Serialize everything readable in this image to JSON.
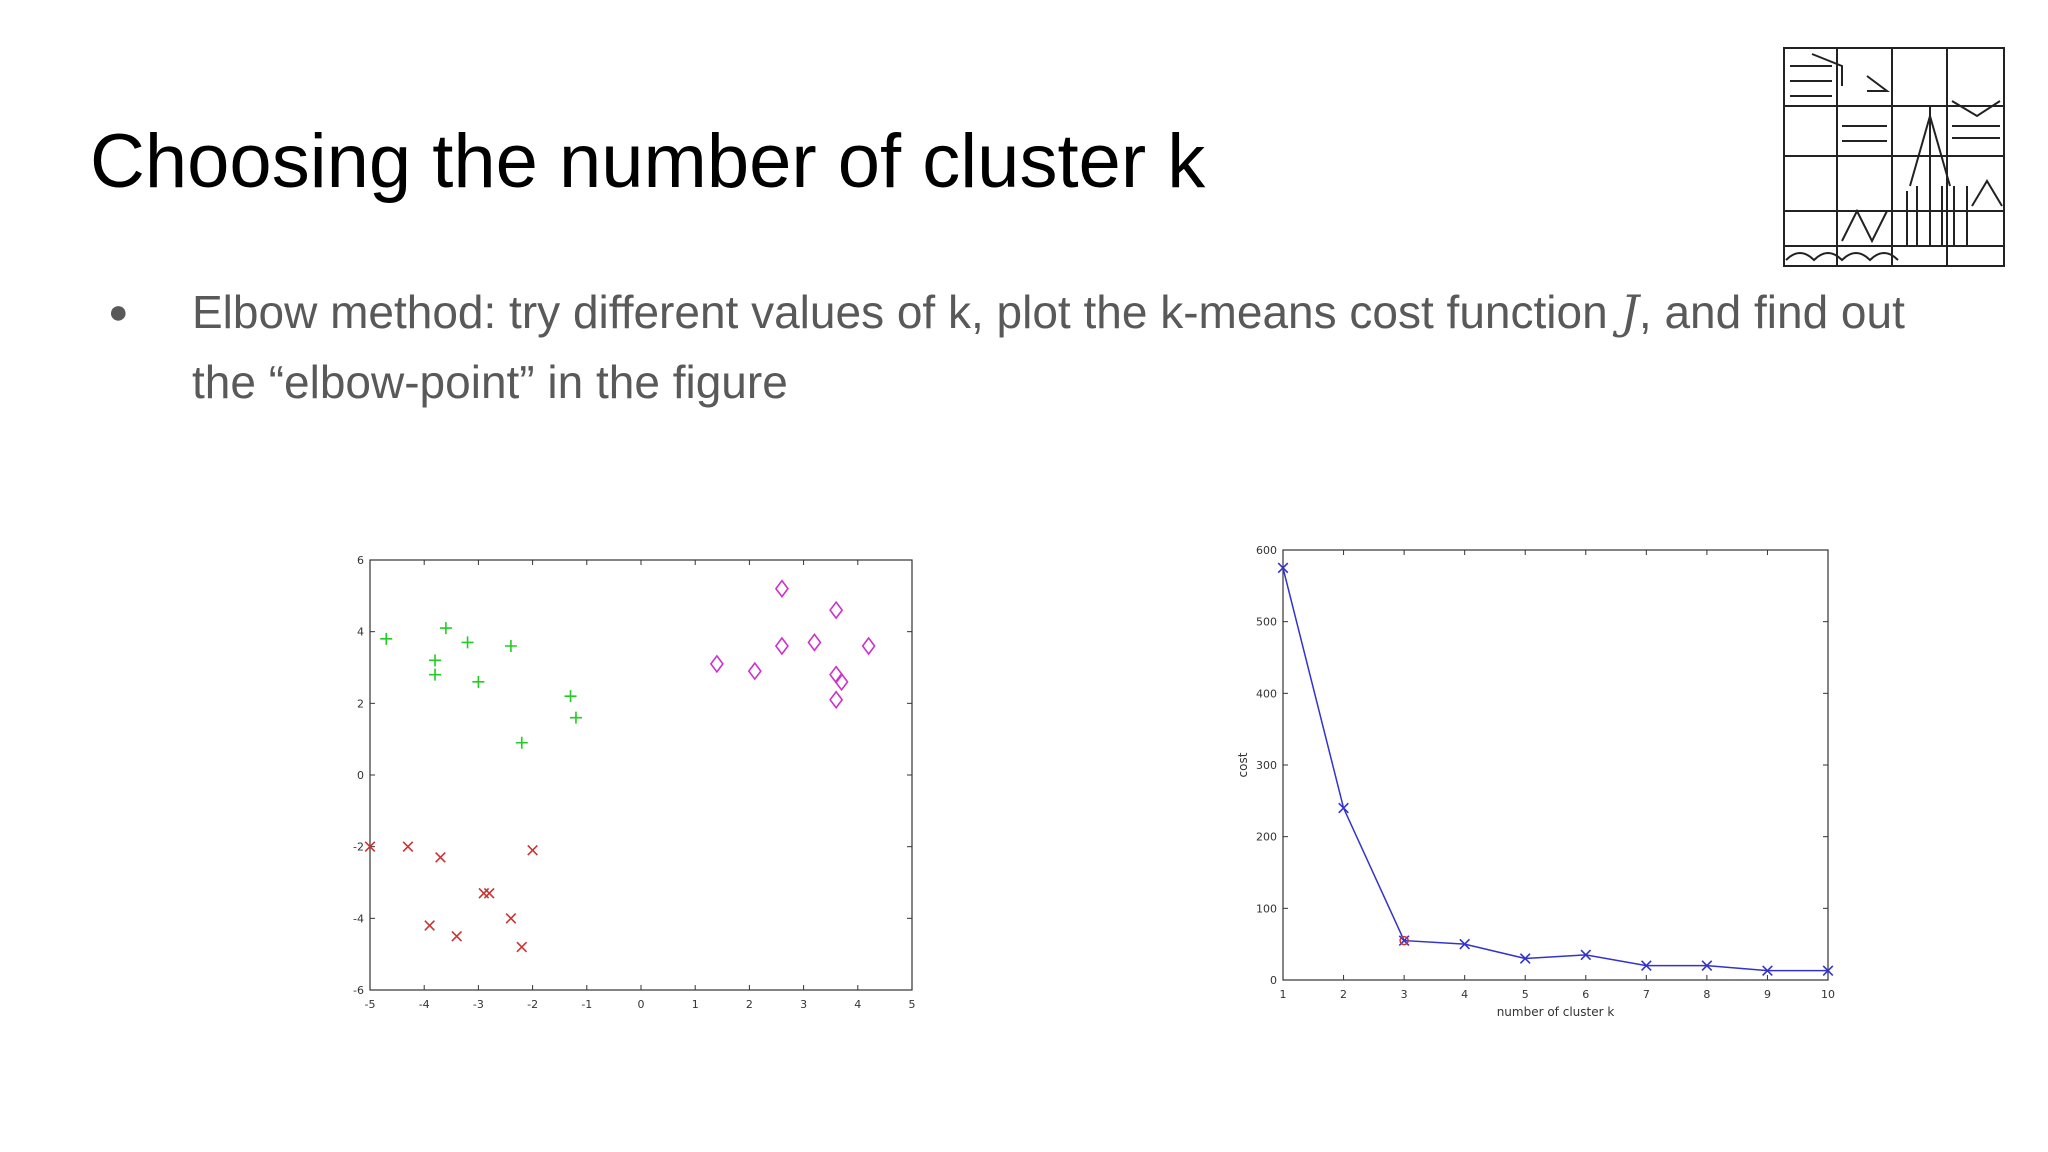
{
  "slide": {
    "title": "Choosing the number of cluster k",
    "bullet": {
      "part1": "Elbow method: try different values of k, plot the k-means cost function ",
      "var": "J",
      "part2": ", and find out the “elbow-point” in the figure"
    }
  },
  "icons": {
    "logo": "university-logo-icon"
  },
  "chart_data": [
    {
      "type": "scatter",
      "title": "",
      "xlabel": "",
      "ylabel": "",
      "xlim": [
        -5,
        5
      ],
      "ylim": [
        -6,
        6
      ],
      "xticks": [
        "-5",
        "-4",
        "-3",
        "-2",
        "-1",
        "0",
        "1",
        "2",
        "3",
        "4",
        "5"
      ],
      "yticks": [
        "-6",
        "-4",
        "-2",
        "0",
        "2",
        "4",
        "6"
      ],
      "grid": false,
      "series": [
        {
          "marker": "plus",
          "color": "#22cc22",
          "points": [
            [
              -4.7,
              3.8
            ],
            [
              -3.6,
              4.1
            ],
            [
              -3.2,
              3.7
            ],
            [
              -2.4,
              3.6
            ],
            [
              -3.8,
              3.2
            ],
            [
              -3.8,
              2.8
            ],
            [
              -3.0,
              2.6
            ],
            [
              -1.3,
              2.2
            ],
            [
              -1.2,
              1.6
            ],
            [
              -2.2,
              0.9
            ]
          ]
        },
        {
          "marker": "x",
          "color": "#cc3333",
          "points": [
            [
              -5.0,
              -2.0
            ],
            [
              -4.3,
              -2.0
            ],
            [
              -3.7,
              -2.3
            ],
            [
              -2.0,
              -2.1
            ],
            [
              -2.9,
              -3.3
            ],
            [
              -2.8,
              -3.3
            ],
            [
              -2.4,
              -4.0
            ],
            [
              -3.9,
              -4.2
            ],
            [
              -3.4,
              -4.5
            ],
            [
              -2.2,
              -4.8
            ]
          ]
        },
        {
          "marker": "diamond",
          "color": "#cc33cc",
          "points": [
            [
              2.6,
              5.2
            ],
            [
              3.6,
              4.6
            ],
            [
              2.6,
              3.6
            ],
            [
              3.2,
              3.7
            ],
            [
              4.2,
              3.6
            ],
            [
              1.4,
              3.1
            ],
            [
              2.1,
              2.9
            ],
            [
              3.6,
              2.8
            ],
            [
              3.7,
              2.6
            ],
            [
              3.6,
              2.1
            ]
          ]
        }
      ]
    },
    {
      "type": "line",
      "title": "",
      "xlabel": "number of cluster k",
      "ylabel": "cost",
      "xlim": [
        1,
        10
      ],
      "ylim": [
        0,
        600
      ],
      "xticks": [
        "1",
        "2",
        "3",
        "4",
        "5",
        "6",
        "7",
        "8",
        "9",
        "10"
      ],
      "yticks": [
        "0",
        "100",
        "200",
        "300",
        "400",
        "500",
        "600"
      ],
      "grid": false,
      "series": [
        {
          "color": "#3333cc",
          "marker": "x",
          "x": [
            1,
            2,
            3,
            4,
            5,
            6,
            7,
            8,
            9,
            10
          ],
          "values": [
            575,
            240,
            55,
            50,
            30,
            35,
            20,
            20,
            13,
            13
          ]
        }
      ],
      "highlight": {
        "x": 3,
        "value": 55,
        "color": "#cc3333"
      }
    }
  ]
}
